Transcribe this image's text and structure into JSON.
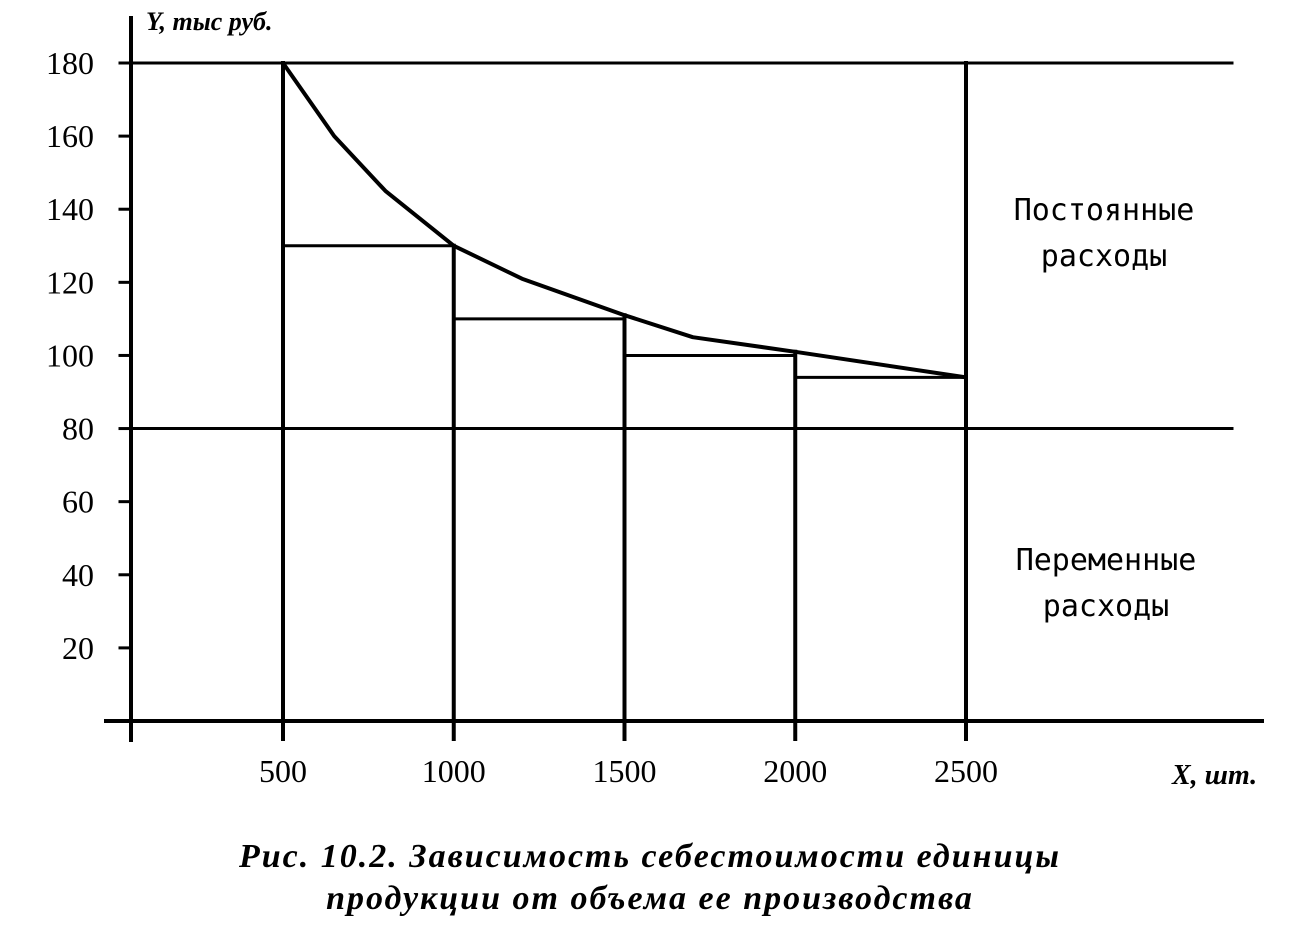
{
  "chart_data": {
    "type": "line",
    "x_unit_label": "X, шт.",
    "y_unit_label": "Y, тыс руб.",
    "x_ticks": [
      "500",
      "1000",
      "1500",
      "2000",
      "2500"
    ],
    "y_ticks": [
      "20",
      "40",
      "60",
      "80",
      "100",
      "120",
      "140",
      "160",
      "180"
    ],
    "xlim": [
      60,
      2900
    ],
    "ylim": [
      0,
      185
    ],
    "series": [
      {
        "x": [
          500,
          650,
          800,
          1000,
          1200,
          1500,
          1700,
          2000,
          2500
        ],
        "values": [
          180,
          160,
          145,
          130,
          121,
          111,
          105,
          101,
          94
        ]
      }
    ],
    "variable_costs_level": 80,
    "steps": [
      {
        "x_from": 500,
        "x_to": 1000,
        "y": 130
      },
      {
        "x_from": 1000,
        "x_to": 1500,
        "y": 110
      },
      {
        "x_from": 1500,
        "x_to": 2000,
        "y": 100
      },
      {
        "x_from": 2000,
        "x_to": 2500,
        "y": 94
      }
    ],
    "annotations": [
      {
        "text_lines": [
          "Постоянные",
          "расходы"
        ]
      },
      {
        "text_lines": [
          "Переменные",
          "расходы"
        ]
      }
    ],
    "caption_lines": [
      "Рис. 10.2. Зависимость себестоимости единицы",
      "продукции от объема ее производства"
    ]
  }
}
